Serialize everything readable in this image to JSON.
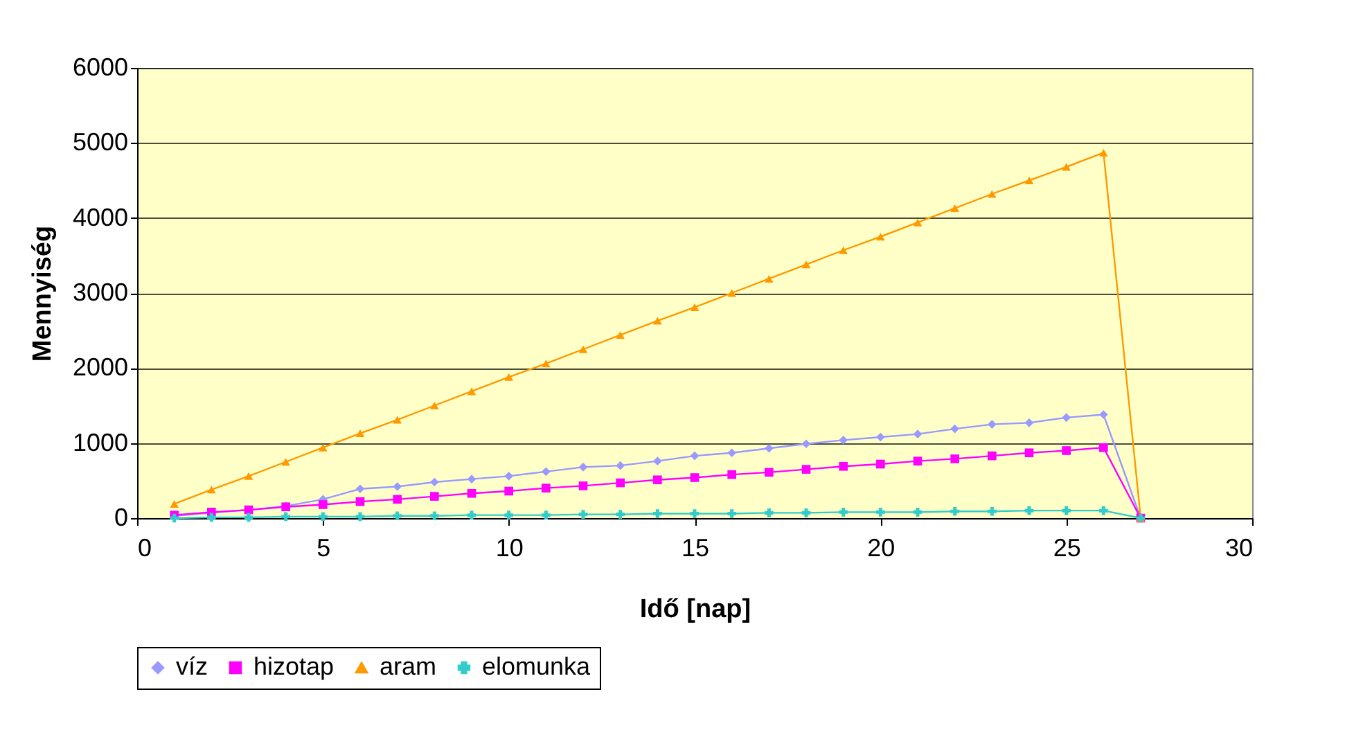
{
  "chart_data": {
    "type": "line",
    "xlabel": "Idő [nap]",
    "ylabel": "Mennyiség",
    "x": [
      1,
      2,
      3,
      4,
      5,
      6,
      7,
      8,
      9,
      10,
      11,
      12,
      13,
      14,
      15,
      16,
      17,
      18,
      19,
      20,
      21,
      22,
      23,
      24,
      25,
      26,
      27
    ],
    "series": [
      {
        "name": "víz",
        "color": "#9999ff",
        "marker": "diamond",
        "values": [
          30,
          70,
          110,
          160,
          250,
          390,
          420,
          480,
          520,
          560,
          620,
          680,
          700,
          760,
          830,
          870,
          930,
          990,
          1040,
          1080,
          1120,
          1190,
          1250,
          1270,
          1340,
          1380,
          0
        ]
      },
      {
        "name": "hizotap",
        "color": "#ff00ff",
        "marker": "square",
        "values": [
          40,
          80,
          110,
          150,
          180,
          220,
          250,
          290,
          330,
          360,
          400,
          430,
          470,
          510,
          540,
          580,
          610,
          650,
          690,
          720,
          760,
          790,
          830,
          870,
          900,
          940,
          0
        ]
      },
      {
        "name": "aram",
        "color": "#ff9900",
        "marker": "triangle",
        "values": [
          190,
          380,
          560,
          750,
          940,
          1130,
          1310,
          1500,
          1690,
          1880,
          2060,
          2250,
          2440,
          2630,
          2810,
          3000,
          3190,
          3380,
          3570,
          3750,
          3940,
          4130,
          4320,
          4500,
          4680,
          4870,
          0
        ]
      },
      {
        "name": "elomunka",
        "color": "#33cccc",
        "marker": "cross",
        "values": [
          0,
          10,
          10,
          20,
          20,
          20,
          30,
          30,
          40,
          40,
          40,
          50,
          50,
          60,
          60,
          60,
          70,
          70,
          80,
          80,
          80,
          90,
          90,
          100,
          100,
          100,
          0
        ]
      }
    ],
    "xlim": [
      0,
      30
    ],
    "xticks": [
      0,
      5,
      10,
      15,
      20,
      25,
      30
    ],
    "ylim": [
      0,
      6000
    ],
    "yticks": [
      0,
      1000,
      2000,
      3000,
      4000,
      5000,
      6000
    ],
    "grid": "y",
    "legend": "bottom"
  }
}
